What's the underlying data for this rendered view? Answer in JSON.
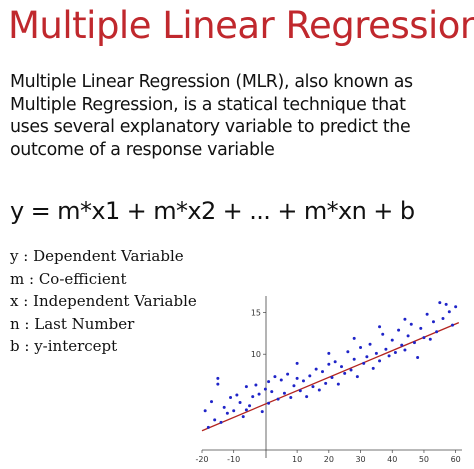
{
  "title": "Multiple Linear Regression",
  "intro_lines": [
    "Multiple Linear Regression (MLR), also known as",
    "Multiple Regression, is a statical technique that",
    "uses several explanatory variable to predict the",
    "outcome of a response variable"
  ],
  "equation": "y = m*x1 + m*x2 + ... + m*xn + b",
  "legend": [
    "y : Dependent Variable",
    "m : Co-efficient",
    "x : Independent Variable",
    "n : Last Number",
    "b : y-intercept"
  ],
  "colors": {
    "title": "#c0282d",
    "points": "#1f24c8",
    "line": "#b3241f"
  },
  "chart_data": {
    "type": "scatter",
    "xlim": [
      -20,
      62
    ],
    "ylim": [
      -2,
      17
    ],
    "xticks": [
      "-20",
      "-10",
      "10",
      "20",
      "30",
      "40",
      "50",
      "60"
    ],
    "xtick_values": [
      -20,
      -10,
      10,
      20,
      30,
      40,
      50,
      60
    ],
    "yticks": [
      "10",
      "15"
    ],
    "ytick_values": [
      10,
      15
    ],
    "grid": false,
    "fit_line": {
      "x": [
        -20,
        61
      ],
      "y": [
        0.8,
        13.8
      ]
    },
    "points": [
      [
        -19,
        3.2
      ],
      [
        -18,
        1.2
      ],
      [
        -17,
        4.3
      ],
      [
        -16,
        2.1
      ],
      [
        -15,
        7.1
      ],
      [
        -15,
        6.4
      ],
      [
        -14,
        1.8
      ],
      [
        -13,
        3.6
      ],
      [
        -12,
        2.9
      ],
      [
        -11,
        4.8
      ],
      [
        -10,
        3.2
      ],
      [
        -9,
        5.1
      ],
      [
        -8,
        4.2
      ],
      [
        -7,
        2.5
      ],
      [
        -6,
        6.1
      ],
      [
        -5,
        3.8
      ],
      [
        -4,
        4.9
      ],
      [
        -3,
        6.3
      ],
      [
        -2,
        5.2
      ],
      [
        -1,
        3.1
      ],
      [
        0,
        5.8
      ],
      [
        1,
        6.7
      ],
      [
        1,
        4.1
      ],
      [
        2,
        5.5
      ],
      [
        3,
        7.3
      ],
      [
        4,
        4.6
      ],
      [
        5,
        6.9
      ],
      [
        6,
        5.3
      ],
      [
        7,
        7.6
      ],
      [
        8,
        4.8
      ],
      [
        9,
        6.2
      ],
      [
        10,
        7.1
      ],
      [
        11,
        5.6
      ],
      [
        12,
        6.8
      ],
      [
        13,
        4.9
      ],
      [
        14,
        7.4
      ],
      [
        15,
        6.1
      ],
      [
        16,
        8.2
      ],
      [
        17,
        5.7
      ],
      [
        18,
        7.9
      ],
      [
        19,
        6.5
      ],
      [
        20,
        8.8
      ],
      [
        21,
        7.2
      ],
      [
        22,
        9.1
      ],
      [
        23,
        6.4
      ],
      [
        24,
        8.5
      ],
      [
        25,
        7.7
      ],
      [
        26,
        10.3
      ],
      [
        27,
        8.1
      ],
      [
        28,
        9.4
      ],
      [
        29,
        7.3
      ],
      [
        30,
        10.8
      ],
      [
        31,
        8.9
      ],
      [
        32,
        9.7
      ],
      [
        33,
        11.2
      ],
      [
        34,
        8.3
      ],
      [
        35,
        10.1
      ],
      [
        36,
        9.2
      ],
      [
        37,
        12.4
      ],
      [
        38,
        10.6
      ],
      [
        39,
        9.8
      ],
      [
        40,
        11.7
      ],
      [
        41,
        10.2
      ],
      [
        42,
        12.9
      ],
      [
        43,
        11.1
      ],
      [
        44,
        10.5
      ],
      [
        45,
        12.2
      ],
      [
        46,
        13.6
      ],
      [
        47,
        11.4
      ],
      [
        48,
        9.6
      ],
      [
        49,
        13.1
      ],
      [
        50,
        12.0
      ],
      [
        51,
        14.8
      ],
      [
        52,
        11.8
      ],
      [
        53,
        13.9
      ],
      [
        54,
        12.7
      ],
      [
        55,
        16.2
      ],
      [
        56,
        14.3
      ],
      [
        57,
        16.0
      ],
      [
        58,
        15.1
      ],
      [
        59,
        13.5
      ],
      [
        60,
        15.7
      ],
      [
        10,
        8.9
      ],
      [
        20,
        10.1
      ],
      [
        36,
        13.3
      ],
      [
        -6,
        3.3
      ],
      [
        44,
        14.2
      ],
      [
        28,
        11.9
      ]
    ]
  }
}
